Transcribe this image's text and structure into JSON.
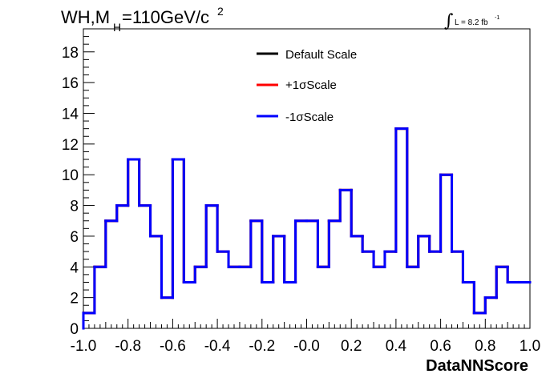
{
  "chart_data": {
    "type": "histogram",
    "title_main": "WH,M",
    "title_sub": "H",
    "title_rest": "=110GeV/c",
    "title_sup": "2",
    "lumi_prefix": "L = 8.2 fb",
    "lumi_sup": "-1",
    "lumi_integral": "∫",
    "xlabel": "DataNNScore",
    "xlim": [
      -1.0,
      1.0
    ],
    "ylim": [
      0,
      19.5
    ],
    "x_ticks": [
      "-1.0",
      "-0.8",
      "-0.6",
      "-0.4",
      "-0.2",
      "-0.0",
      "0.2",
      "0.4",
      "0.6",
      "0.8",
      "1.0"
    ],
    "x_tick_values": [
      -1.0,
      -0.8,
      -0.6,
      -0.4,
      -0.2,
      0.0,
      0.2,
      0.4,
      0.6,
      0.8,
      1.0
    ],
    "y_ticks": [
      "0",
      "2",
      "4",
      "6",
      "8",
      "10",
      "12",
      "14",
      "16",
      "18"
    ],
    "y_tick_values": [
      0,
      2,
      4,
      6,
      8,
      10,
      12,
      14,
      16,
      18
    ],
    "bin_edges_start": -1.0,
    "bin_width": 0.05,
    "series": [
      {
        "name": "Default Scale",
        "color": "#000000",
        "values": [
          1,
          4,
          7,
          8,
          11,
          8,
          6,
          2,
          11,
          3,
          4,
          8,
          5,
          4,
          4,
          7,
          3,
          6,
          3,
          7,
          7,
          4,
          7,
          9,
          6,
          5,
          4,
          5,
          13,
          4,
          6,
          5,
          10,
          5,
          3,
          1,
          2,
          4,
          3,
          3
        ]
      },
      {
        "name": "+1σScale",
        "color": "#ff0000",
        "values": [
          1,
          4,
          7,
          8,
          11,
          8,
          6,
          2,
          11,
          3,
          4,
          8,
          5,
          4,
          4,
          7,
          3,
          6,
          3,
          7,
          7,
          4,
          7,
          9,
          6,
          5,
          4,
          5,
          13,
          4,
          6,
          5,
          10,
          5,
          3,
          1,
          2,
          4,
          3,
          3
        ]
      },
      {
        "name": "-1σScale",
        "color": "#0000ff",
        "values": [
          1,
          4,
          7,
          8,
          11,
          8,
          6,
          2,
          11,
          3,
          4,
          8,
          5,
          4,
          4,
          7,
          3,
          6,
          3,
          7,
          7,
          4,
          7,
          9,
          6,
          5,
          4,
          5,
          13,
          4,
          6,
          5,
          10,
          5,
          3,
          1,
          2,
          4,
          3,
          3
        ]
      }
    ],
    "legend_position": "top-center",
    "grid": false
  }
}
